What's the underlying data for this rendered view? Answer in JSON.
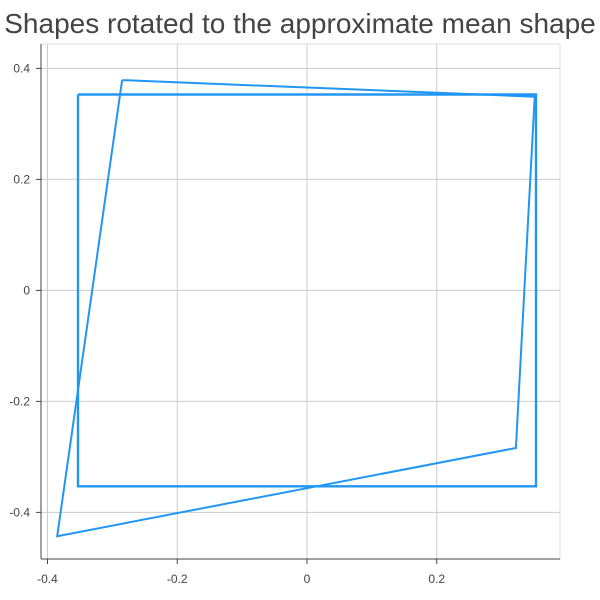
{
  "chart_data": {
    "type": "line",
    "title": "Shapes rotated to the approximate mean shape",
    "xlabel": "",
    "ylabel": "",
    "xlim": [
      -0.41,
      0.39
    ],
    "ylim": [
      -0.484,
      0.444
    ],
    "x_ticks": [
      -0.4,
      -0.2,
      0,
      0.2
    ],
    "x_tick_labels": [
      "-0.4",
      "-0.2",
      "0",
      "0.2"
    ],
    "y_ticks": [
      -0.4,
      -0.2,
      0,
      0.2,
      0.4
    ],
    "y_tick_labels": [
      "-0.4",
      "-0.2",
      "0",
      "0.2",
      "0.4"
    ],
    "grid": true,
    "legend": false,
    "series": [
      {
        "x": [
          -0.353,
          0.353,
          0.353,
          -0.353,
          -0.353
        ],
        "y": [
          0.353,
          0.353,
          -0.353,
          -0.353,
          0.353
        ],
        "color": "#2196f3"
      },
      {
        "x": [
          -0.285,
          0.351,
          0.322,
          -0.385,
          -0.285
        ],
        "y": [
          0.379,
          0.349,
          -0.284,
          -0.443,
          0.379
        ],
        "color": "#2196f3"
      }
    ]
  }
}
